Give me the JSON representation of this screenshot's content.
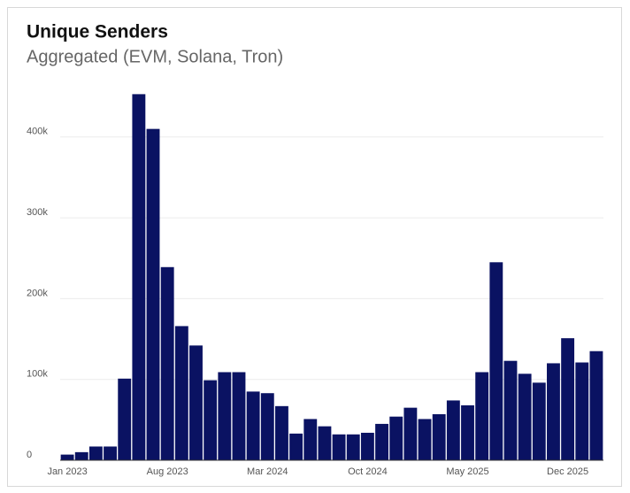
{
  "chart_data": {
    "type": "bar",
    "title": "Unique Senders",
    "subtitle": "Aggregated (EVM, Solana, Tron)",
    "categories": [
      "Jan 2023",
      null,
      null,
      null,
      null,
      null,
      null,
      "Aug 2023",
      null,
      null,
      null,
      null,
      null,
      null,
      "Mar 2024",
      null,
      null,
      null,
      null,
      null,
      null,
      "Oct 2024",
      null,
      null,
      null,
      null,
      null,
      null,
      "May 2025",
      null,
      null,
      null,
      null,
      null,
      null,
      "Dec 2025",
      null,
      null
    ],
    "values": [
      7000,
      10000,
      17000,
      17000,
      101000,
      453000,
      410000,
      239000,
      166000,
      142000,
      99000,
      109000,
      109000,
      85000,
      83000,
      67000,
      33000,
      51000,
      42000,
      32000,
      32000,
      34000,
      45000,
      54000,
      65000,
      51000,
      57000,
      74000,
      68000,
      109000,
      245000,
      123000,
      107000,
      96000,
      120000,
      151000,
      121000,
      135000
    ],
    "color": "#0a1262",
    "ylim": [
      0,
      460000
    ],
    "yticks": [
      0,
      {
        "value": 100000,
        "label": "100k"
      },
      {
        "value": 200000,
        "label": "200k"
      },
      {
        "value": 300000,
        "label": "300k"
      },
      {
        "value": 400000,
        "label": "400k"
      }
    ],
    "grid": true
  }
}
